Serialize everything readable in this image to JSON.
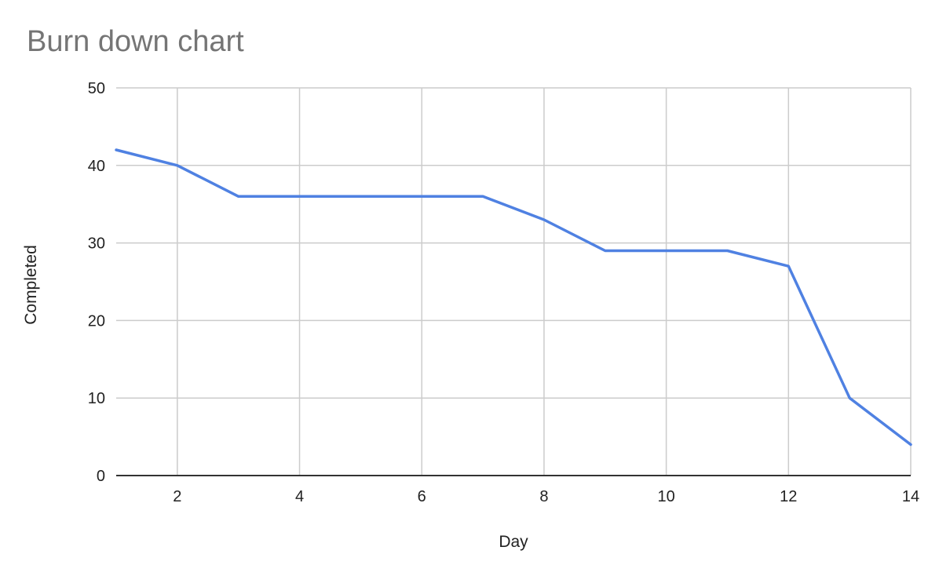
{
  "chart_data": {
    "type": "line",
    "title": "Burn down chart",
    "xlabel": "Day",
    "ylabel": "Completed",
    "xlim": [
      1,
      14
    ],
    "ylim": [
      0,
      50
    ],
    "x_ticks": [
      2,
      4,
      6,
      8,
      10,
      12,
      14
    ],
    "y_ticks": [
      0,
      10,
      20,
      30,
      40,
      50
    ],
    "grid": true,
    "legend": "none",
    "series": [
      {
        "color": "#4f81e2",
        "points": [
          {
            "x": 1,
            "y": 42
          },
          {
            "x": 2,
            "y": 40
          },
          {
            "x": 3,
            "y": 36
          },
          {
            "x": 4,
            "y": 36
          },
          {
            "x": 5,
            "y": 36
          },
          {
            "x": 6,
            "y": 36
          },
          {
            "x": 7,
            "y": 36
          },
          {
            "x": 8,
            "y": 33
          },
          {
            "x": 9,
            "y": 29
          },
          {
            "x": 10,
            "y": 29
          },
          {
            "x": 11,
            "y": 29
          },
          {
            "x": 12,
            "y": 27
          },
          {
            "x": 13,
            "y": 10
          },
          {
            "x": 14,
            "y": 4
          }
        ]
      }
    ],
    "colors": {
      "grid": "#cccccc",
      "axis": "#333333"
    }
  }
}
